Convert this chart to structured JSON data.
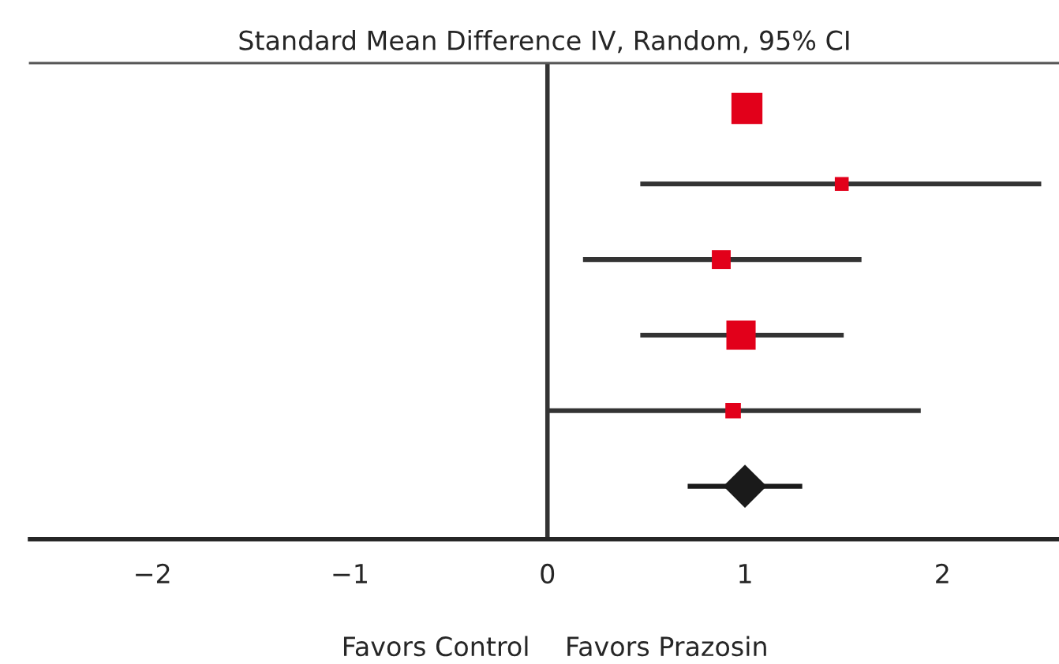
{
  "chart_data": {
    "type": "bubble",
    "orientation": "horizontal",
    "title": "Standard Mean Difference IV, Random, 95% CI",
    "categories": [
      null,
      null,
      null,
      null,
      null,
      null
    ],
    "series": [
      {
        "type": "bubble",
        "marker": "square",
        "color": "#e2001a",
        "values": [
          1.01,
          1.49,
          0.88,
          0.98,
          0.94,
          null
        ],
        "sizes": [
          1,
          0.2,
          0.37,
          0.89,
          0.25,
          null
        ],
        "errors": [
          null,
          [
            0.47,
            2.5
          ],
          [
            0.18,
            1.59
          ],
          [
            0.47,
            1.5
          ],
          [
            0.0,
            1.89
          ],
          null
        ]
      },
      {
        "type": "scatter",
        "marker": "diamond",
        "color": "#1a1a1a",
        "values": [
          null,
          null,
          null,
          null,
          null,
          1.0
        ],
        "errors": [
          null,
          null,
          null,
          null,
          null,
          [
            0.71,
            1.29
          ]
        ]
      }
    ],
    "xlim": [
      -2.62,
      2.59
    ],
    "xticks": [
      {
        "value": -2,
        "label": "−2"
      },
      {
        "value": -1,
        "label": "−1"
      },
      0,
      1,
      2
    ],
    "ref_lines": [
      {
        "axis": "x",
        "value": 0,
        "color": "#333333"
      }
    ],
    "annotations": [
      "Favors Control",
      "Favors Prazosin"
    ]
  }
}
